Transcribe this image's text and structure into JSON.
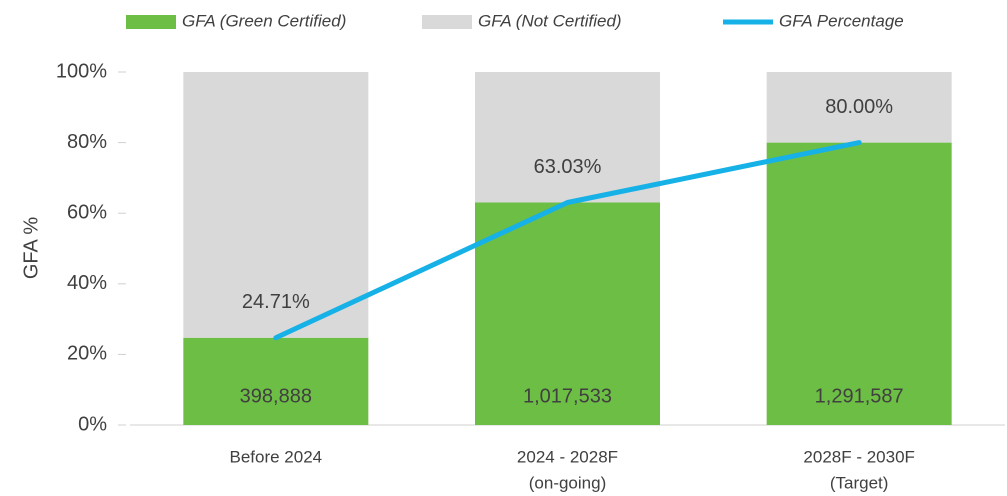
{
  "chart_data": {
    "type": "stacked-bar-line",
    "y_label": "GFA %",
    "categories": [
      [
        "Before 2024"
      ],
      [
        "2024 - 2028F",
        "(on-going)"
      ],
      [
        "2028F - 2030F",
        "(Target)"
      ]
    ],
    "series": [
      {
        "name": "GFA (Green Certified)",
        "color": "#6dbe45",
        "type": "bar",
        "values": [
          24.71,
          63.03,
          80.0
        ],
        "gfa_area": [
          {
            "value": 398888,
            "label": "398,888"
          },
          {
            "value": 1017533,
            "label": "1,017,533"
          },
          {
            "value": 1291587,
            "label": "1,291,587"
          }
        ]
      },
      {
        "name": "GFA (Not Certified)",
        "color": "#d9d9d9",
        "type": "bar",
        "values": [
          75.29,
          36.97,
          20.0
        ]
      },
      {
        "name": "GFA Percentage",
        "color": "#16b1e6",
        "type": "line",
        "values": [
          24.71,
          63.03,
          80.0
        ],
        "value_labels": [
          "24.71%",
          "63.03%",
          "80.00%"
        ]
      }
    ],
    "ylim": [
      0,
      100
    ],
    "yticks": [
      {
        "value": 0,
        "label": "0%"
      },
      {
        "value": 20,
        "label": "20%"
      },
      {
        "value": 40,
        "label": "40%"
      },
      {
        "value": 60,
        "label": "60%"
      },
      {
        "value": 80,
        "label": "80%"
      },
      {
        "value": 100,
        "label": "100%"
      }
    ],
    "legend": "top"
  }
}
